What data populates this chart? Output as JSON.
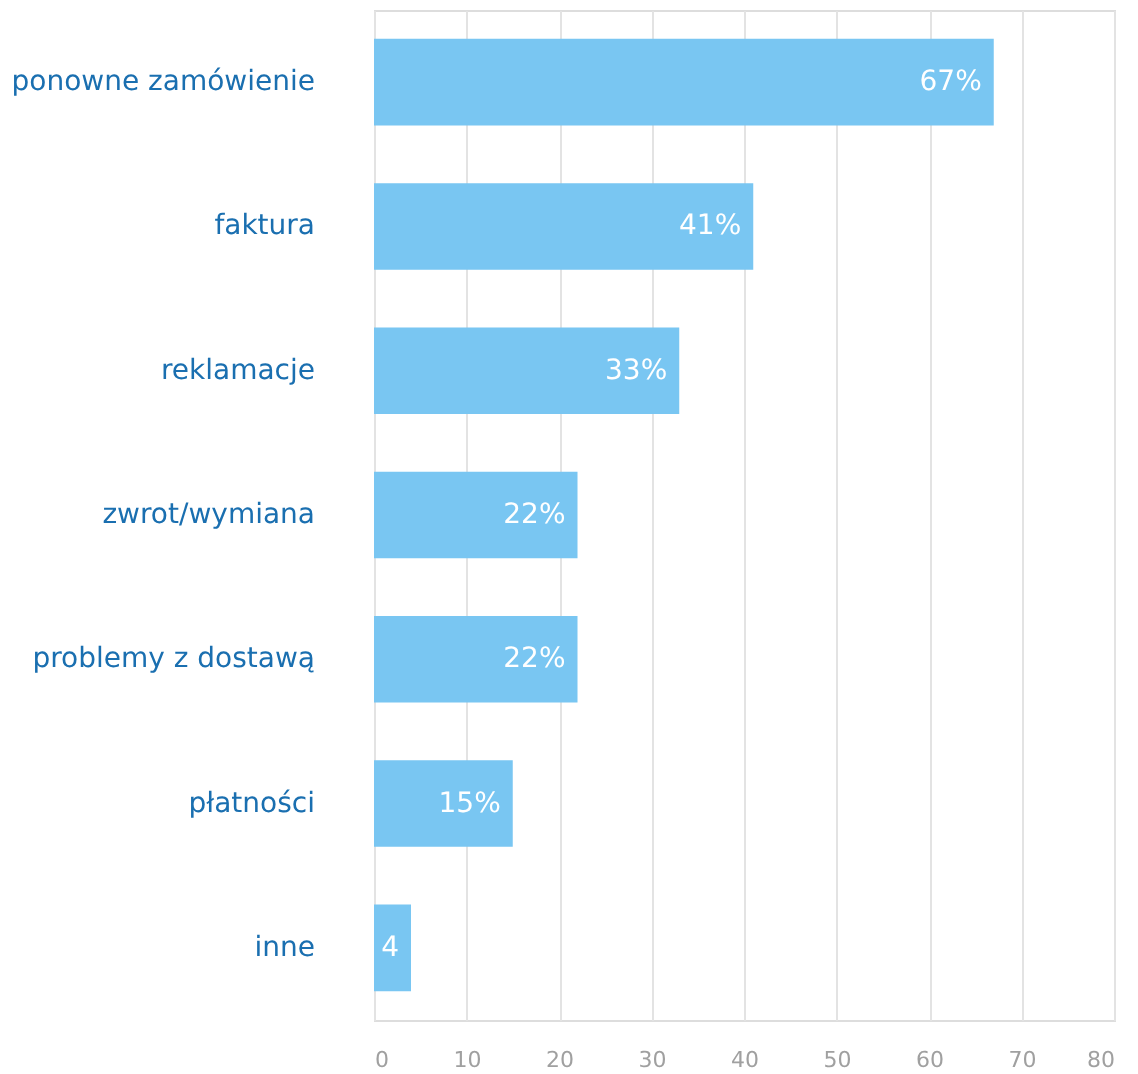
{
  "chart_data": {
    "type": "bar",
    "orientation": "horizontal",
    "categories": [
      "ponowne zamówienie",
      "faktura",
      "reklamacje",
      "zwrot/wymiana",
      "problemy z dostawą",
      "płatności",
      "inne"
    ],
    "values": [
      67,
      41,
      33,
      22,
      22,
      15,
      4
    ],
    "value_labels": [
      "67%",
      "41%",
      "33%",
      "22%",
      "22%",
      "15%",
      "4"
    ],
    "color": "#79c6f2",
    "xlim": [
      0,
      80
    ],
    "xticks": [
      0,
      10,
      20,
      30,
      40,
      50,
      60,
      70,
      80
    ],
    "grid": "x"
  }
}
